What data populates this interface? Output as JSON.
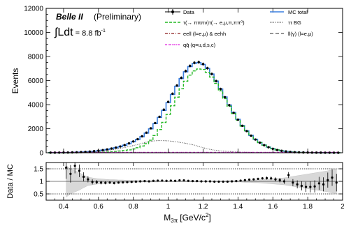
{
  "chart_data": [
    {
      "type": "line",
      "ylabel": "Events",
      "xlim": [
        0.3,
        2.0
      ],
      "ylim": [
        0,
        12000
      ],
      "yticks": [
        0,
        2000,
        4000,
        6000,
        8000,
        10000,
        12000
      ],
      "annotations": {
        "experiment": "Belle II",
        "status": "(Preliminary)",
        "lumi_symbol": "∫Ldt",
        "lumi_value": "= 8.8 fb",
        "lumi_exp": "-1"
      },
      "legend": {
        "data": "Data",
        "mc_total": "MC total",
        "tautau_signal": "τ(→ πππν)τ(→ e,μ,π,ππ⁰)",
        "tautau_bg": "ττ BG",
        "eell": "eell (l=e,μ) & eehh",
        "llgamma": "ll(γ) (l=e,μ)",
        "qqbar": "qq̄ (q=u,d,s,c)"
      },
      "colors": {
        "data": "#000000",
        "mc_total": "#3a7fe0",
        "tautau_signal": "#22b822",
        "tautau_bg": "#444444",
        "eell": "#8b1a1a",
        "llgamma": "#555555",
        "qqbar": "#e020e0"
      },
      "x": [
        0.325,
        0.35,
        0.375,
        0.4,
        0.425,
        0.45,
        0.475,
        0.5,
        0.525,
        0.55,
        0.575,
        0.6,
        0.625,
        0.65,
        0.675,
        0.7,
        0.725,
        0.75,
        0.775,
        0.8,
        0.825,
        0.85,
        0.875,
        0.9,
        0.925,
        0.95,
        0.975,
        1.0,
        1.025,
        1.05,
        1.075,
        1.1,
        1.125,
        1.15,
        1.175,
        1.2,
        1.225,
        1.25,
        1.275,
        1.3,
        1.325,
        1.35,
        1.375,
        1.4,
        1.425,
        1.45,
        1.475,
        1.5,
        1.525,
        1.55,
        1.575,
        1.6,
        1.625,
        1.65,
        1.675,
        1.7,
        1.725,
        1.75,
        1.775,
        1.8,
        1.825,
        1.85,
        1.875,
        1.9,
        1.925,
        1.95,
        1.975
      ],
      "series": [
        {
          "name": "Data",
          "values": [
            10,
            10,
            12,
            15,
            20,
            30,
            40,
            55,
            75,
            100,
            130,
            170,
            220,
            280,
            350,
            430,
            520,
            640,
            780,
            940,
            1130,
            1370,
            1670,
            2030,
            2470,
            2990,
            3580,
            4230,
            4910,
            5590,
            6230,
            6790,
            7220,
            7480,
            7530,
            7370,
            7030,
            6550,
            5960,
            5300,
            4620,
            3950,
            3320,
            2750,
            2240,
            1800,
            1420,
            1100,
            840,
            630,
            460,
            330,
            230,
            160,
            110,
            75,
            50,
            35,
            25,
            18,
            12,
            9,
            7,
            5,
            4,
            3,
            2
          ]
        },
        {
          "name": "MC total",
          "values": [
            9,
            9,
            11,
            14,
            19,
            28,
            38,
            52,
            72,
            96,
            126,
            164,
            212,
            270,
            338,
            418,
            508,
            625,
            760,
            918,
            1105,
            1340,
            1635,
            1990,
            2425,
            2940,
            3525,
            4165,
            4845,
            5525,
            6165,
            6730,
            7165,
            7430,
            7490,
            7340,
            7010,
            6540,
            5955,
            5305,
            4635,
            3970,
            3345,
            2775,
            2265,
            1825,
            1445,
            1120,
            860,
            645,
            475,
            340,
            240,
            165,
            114,
            78,
            53,
            36,
            25,
            18,
            13,
            9,
            7,
            5,
            3,
            2,
            2
          ]
        },
        {
          "name": "τ(→ πππν)τ(→ e,μ,π,ππ⁰)",
          "values": [
            0,
            0,
            0,
            1,
            2,
            4,
            6,
            10,
            15,
            22,
            30,
            40,
            55,
            70,
            90,
            115,
            145,
            185,
            240,
            320,
            420,
            560,
            760,
            1040,
            1430,
            1930,
            2520,
            3190,
            3900,
            4620,
            5320,
            5950,
            6450,
            6800,
            6960,
            6920,
            6680,
            6290,
            5760,
            5150,
            4500,
            3860,
            3260,
            2710,
            2210,
            1780,
            1410,
            1090,
            840,
            630,
            465,
            335,
            237,
            163,
            112,
            77,
            52,
            35,
            24,
            17,
            12,
            8,
            6,
            4,
            3,
            2,
            1
          ]
        },
        {
          "name": "ττ BG",
          "values": [
            9,
            9,
            11,
            13,
            17,
            24,
            32,
            42,
            57,
            74,
            96,
            124,
            157,
            200,
            248,
            303,
            363,
            440,
            520,
            598,
            685,
            780,
            875,
            950,
            995,
            1010,
            1005,
            990,
            945,
            905,
            845,
            780,
            715,
            630,
            530,
            420,
            330,
            250,
            195,
            155,
            135,
            110,
            85,
            65,
            55,
            45,
            35,
            30,
            20,
            15,
            10,
            5,
            3,
            2,
            2,
            1,
            1,
            1,
            1,
            1,
            1,
            1,
            1,
            1,
            1,
            0,
            0
          ]
        },
        {
          "name": "eell (l=e,μ) & eehh",
          "values": [
            2,
            2,
            2,
            2,
            2,
            2,
            2,
            2,
            2,
            2,
            2,
            2,
            2,
            2,
            2,
            2,
            2,
            2,
            2,
            2,
            2,
            2,
            2,
            2,
            2,
            2,
            2,
            2,
            2,
            2,
            2,
            2,
            2,
            2,
            2,
            2,
            2,
            2,
            2,
            2,
            2,
            2,
            2,
            2,
            2,
            2,
            2,
            2,
            2,
            2,
            2,
            2,
            2,
            2,
            2,
            2,
            2,
            2,
            2,
            2,
            2,
            2,
            2,
            2,
            2,
            2,
            2
          ]
        },
        {
          "name": "qq̄ (q=u,d,s,c)",
          "values": [
            40,
            40,
            40,
            40,
            40,
            40,
            40,
            40,
            40,
            40,
            40,
            40,
            40,
            40,
            40,
            40,
            40,
            40,
            40,
            40,
            40,
            40,
            40,
            40,
            40,
            40,
            40,
            40,
            40,
            40,
            40,
            40,
            40,
            40,
            40,
            40,
            40,
            40,
            40,
            40,
            40,
            40,
            40,
            40,
            40,
            40,
            40,
            40,
            40,
            40,
            40,
            40,
            40,
            40,
            40,
            40,
            40,
            40,
            40,
            40,
            40,
            40,
            40,
            40,
            40,
            40,
            40
          ]
        }
      ]
    },
    {
      "type": "scatter",
      "xlabel": "M",
      "xlabel_sub": "3π",
      "xlabel_units": "[GeV/c",
      "xlabel_units_sup": "2",
      "xlabel_units_close": "]",
      "ylabel": "Data / MC",
      "xlim": [
        0.3,
        2.0
      ],
      "ylim": [
        0.25,
        1.75
      ],
      "yticks": [
        0.5,
        1,
        1.5
      ],
      "xticks": [
        0.4,
        0.6,
        0.8,
        1,
        1.2,
        1.4,
        1.6,
        1.8,
        2
      ],
      "x": [
        0.415,
        0.44,
        0.465,
        0.49,
        0.515,
        0.54,
        0.565,
        0.59,
        0.615,
        0.64,
        0.665,
        0.69,
        0.715,
        0.74,
        0.765,
        0.79,
        0.815,
        0.84,
        0.865,
        0.89,
        0.915,
        0.94,
        0.965,
        0.99,
        1.015,
        1.04,
        1.065,
        1.09,
        1.115,
        1.14,
        1.165,
        1.19,
        1.215,
        1.24,
        1.265,
        1.29,
        1.315,
        1.34,
        1.365,
        1.39,
        1.415,
        1.44,
        1.465,
        1.49,
        1.515,
        1.54,
        1.565,
        1.59,
        1.615,
        1.64,
        1.665,
        1.69,
        1.715,
        1.74,
        1.765,
        1.79,
        1.815,
        1.84,
        1.865,
        1.89,
        1.915,
        1.94,
        1.965
      ],
      "values": [
        1.55,
        1.3,
        1.62,
        1.42,
        1.18,
        1.08,
        0.98,
        0.97,
        0.95,
        0.94,
        0.95,
        0.93,
        0.95,
        0.96,
        0.97,
        0.98,
        0.99,
        1.0,
        1.01,
        1.0,
        1.02,
        1.03,
        1.03,
        1.02,
        1.03,
        1.02,
        1.04,
        1.04,
        1.02,
        1.01,
        1.01,
        1.0,
        1.0,
        1.0,
        0.99,
        0.99,
        0.99,
        0.99,
        1.0,
        1.01,
        1.03,
        1.05,
        1.07,
        1.08,
        1.1,
        1.12,
        1.13,
        1.12,
        1.08,
        1.05,
        1.0,
        1.25,
        0.95,
        0.88,
        0.82,
        0.78,
        0.78,
        0.8,
        0.92,
        0.88,
        1.05,
        1.15,
        0.95
      ],
      "errors": [
        0.45,
        0.35,
        0.3,
        0.25,
        0.18,
        0.12,
        0.1,
        0.08,
        0.07,
        0.06,
        0.05,
        0.05,
        0.04,
        0.04,
        0.03,
        0.03,
        0.03,
        0.02,
        0.02,
        0.02,
        0.02,
        0.02,
        0.01,
        0.01,
        0.01,
        0.01,
        0.01,
        0.01,
        0.01,
        0.01,
        0.01,
        0.01,
        0.01,
        0.01,
        0.01,
        0.01,
        0.01,
        0.02,
        0.02,
        0.02,
        0.02,
        0.03,
        0.03,
        0.04,
        0.04,
        0.05,
        0.06,
        0.07,
        0.08,
        0.09,
        0.1,
        0.12,
        0.14,
        0.16,
        0.18,
        0.2,
        0.22,
        0.24,
        0.26,
        0.28,
        0.3,
        0.33,
        0.35
      ]
    }
  ]
}
